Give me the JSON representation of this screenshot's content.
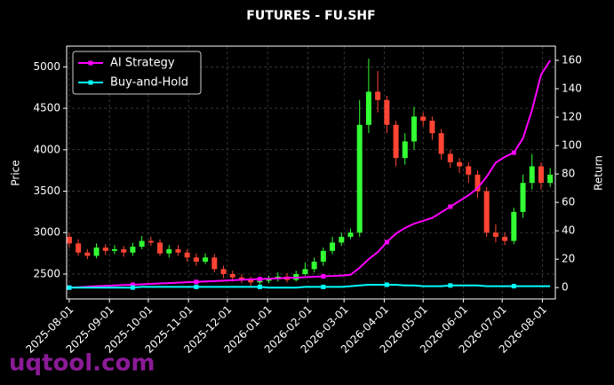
{
  "chart_data": {
    "type": "candlestick",
    "title": "FUTURES - FU.SHF",
    "ylabel": "Price",
    "y2label": "Return",
    "watermark": "uqtool.com",
    "x": [
      "2025-08-01",
      "2025-08-08",
      "2025-08-15",
      "2025-08-22",
      "2025-08-29",
      "2025-09-05",
      "2025-09-12",
      "2025-09-19",
      "2025-09-26",
      "2025-10-03",
      "2025-10-10",
      "2025-10-17",
      "2025-10-24",
      "2025-10-31",
      "2025-11-07",
      "2025-11-14",
      "2025-11-21",
      "2025-11-28",
      "2025-12-05",
      "2025-12-12",
      "2025-12-19",
      "2025-12-26",
      "2026-01-02",
      "2026-01-09",
      "2026-01-16",
      "2026-01-23",
      "2026-01-30",
      "2026-02-06",
      "2026-02-13",
      "2026-02-20",
      "2026-02-27",
      "2026-03-06",
      "2026-03-13",
      "2026-03-20",
      "2026-03-27",
      "2026-04-03",
      "2026-04-10",
      "2026-04-17",
      "2026-04-24",
      "2026-05-01",
      "2026-05-08",
      "2026-05-15",
      "2026-05-22",
      "2026-05-29",
      "2026-06-05",
      "2026-06-12",
      "2026-06-19",
      "2026-06-26",
      "2026-07-03",
      "2026-07-10",
      "2026-07-17",
      "2026-07-24",
      "2026-07-31",
      "2026-08-07"
    ],
    "open": [
      2950,
      2870,
      2760,
      2720,
      2820,
      2780,
      2800,
      2760,
      2830,
      2900,
      2880,
      2750,
      2800,
      2760,
      2700,
      2650,
      2700,
      2560,
      2500,
      2460,
      2430,
      2400,
      2420,
      2440,
      2470,
      2430,
      2500,
      2560,
      2650,
      2780,
      2880,
      2950,
      3000,
      4300,
      4700,
      4600,
      4300,
      3900,
      4100,
      4400,
      4350,
      4200,
      3950,
      3850,
      3800,
      3700,
      3500,
      3000,
      2950,
      2900,
      3250,
      3600,
      3800,
      3600
    ],
    "high": [
      3000,
      2920,
      2800,
      2870,
      2860,
      2850,
      2840,
      2880,
      2960,
      2950,
      2920,
      2850,
      2850,
      2800,
      2750,
      2750,
      2740,
      2600,
      2540,
      2500,
      2470,
      2460,
      2480,
      2520,
      2510,
      2540,
      2640,
      2700,
      2820,
      2950,
      3000,
      3050,
      4600,
      5100,
      4950,
      4650,
      4350,
      4200,
      4520,
      4450,
      4400,
      4250,
      4000,
      3900,
      3850,
      3750,
      3550,
      3100,
      3000,
      3300,
      3700,
      3950,
      3850,
      3780
    ],
    "low": [
      2820,
      2720,
      2680,
      2690,
      2730,
      2740,
      2710,
      2720,
      2800,
      2840,
      2720,
      2700,
      2720,
      2650,
      2600,
      2620,
      2520,
      2450,
      2410,
      2390,
      2360,
      2370,
      2390,
      2410,
      2400,
      2410,
      2480,
      2520,
      2600,
      2740,
      2840,
      2920,
      2950,
      4200,
      4450,
      4200,
      3800,
      3820,
      4000,
      4280,
      4120,
      3880,
      3780,
      3720,
      3600,
      3420,
      2950,
      2880,
      2850,
      2860,
      3180,
      3520,
      3520,
      3550
    ],
    "close": [
      2870,
      2760,
      2720,
      2820,
      2780,
      2800,
      2760,
      2830,
      2900,
      2880,
      2750,
      2800,
      2760,
      2700,
      2650,
      2700,
      2560,
      2500,
      2460,
      2430,
      2400,
      2420,
      2440,
      2470,
      2430,
      2500,
      2560,
      2650,
      2780,
      2880,
      2950,
      3000,
      4300,
      4700,
      4600,
      4300,
      3900,
      4100,
      4400,
      4350,
      4200,
      3950,
      3850,
      3800,
      3700,
      3500,
      3000,
      2950,
      2900,
      3250,
      3600,
      3800,
      3600,
      3700
    ],
    "up_color": "#33ff33",
    "down_color": "#ff4433",
    "series": [
      {
        "name": "AI Strategy",
        "color": "#ff00ff",
        "axis": "y2",
        "values": [
          0,
          0.3,
          0.6,
          1,
          1.2,
          1.5,
          1.8,
          2,
          2.3,
          2.6,
          2.9,
          3.2,
          3.5,
          3.8,
          4,
          4.3,
          4.6,
          4.9,
          5.2,
          5.5,
          5.8,
          6,
          6.2,
          6.5,
          6.8,
          7,
          7.3,
          7.6,
          7.9,
          8.2,
          8.5,
          9,
          14,
          20,
          25,
          32,
          38,
          42,
          45,
          47,
          49,
          53,
          57,
          61,
          65,
          70,
          78,
          88,
          92,
          95,
          105,
          125,
          150,
          160
        ]
      },
      {
        "name": "Buy-and-Hold",
        "color": "#00ffff",
        "axis": "y2",
        "values": [
          0,
          0,
          0,
          0,
          0,
          0,
          0,
          0,
          0.5,
          0.5,
          0.5,
          0.5,
          0.5,
          0.5,
          0.5,
          0.5,
          0.5,
          0.5,
          0.5,
          0.5,
          0.5,
          0.5,
          0,
          0,
          0,
          0,
          0.5,
          0.5,
          0.5,
          0.5,
          0.5,
          1,
          1.5,
          2,
          2,
          2,
          2,
          1.5,
          1.5,
          1,
          1,
          1,
          1.5,
          1.5,
          1.5,
          1.5,
          1,
          1,
          1,
          1,
          1,
          1,
          1,
          1
        ]
      }
    ],
    "xlim": [
      "2025-07-30",
      "2026-08-11"
    ],
    "xticks": [
      "2025-08-01",
      "2025-09-01",
      "2025-10-01",
      "2025-11-01",
      "2025-12-01",
      "2026-01-01",
      "2026-02-01",
      "2026-03-01",
      "2026-04-01",
      "2026-05-01",
      "2026-06-01",
      "2026-07-01",
      "2026-08-01"
    ],
    "ylim": [
      2200,
      5250
    ],
    "yticks": [
      2500,
      3000,
      3500,
      4000,
      4500,
      5000
    ],
    "y2lim": [
      -8,
      170
    ],
    "y2ticks": [
      0,
      20,
      40,
      60,
      80,
      100,
      120,
      140,
      160
    ],
    "grid": true,
    "legend": "upper left"
  }
}
